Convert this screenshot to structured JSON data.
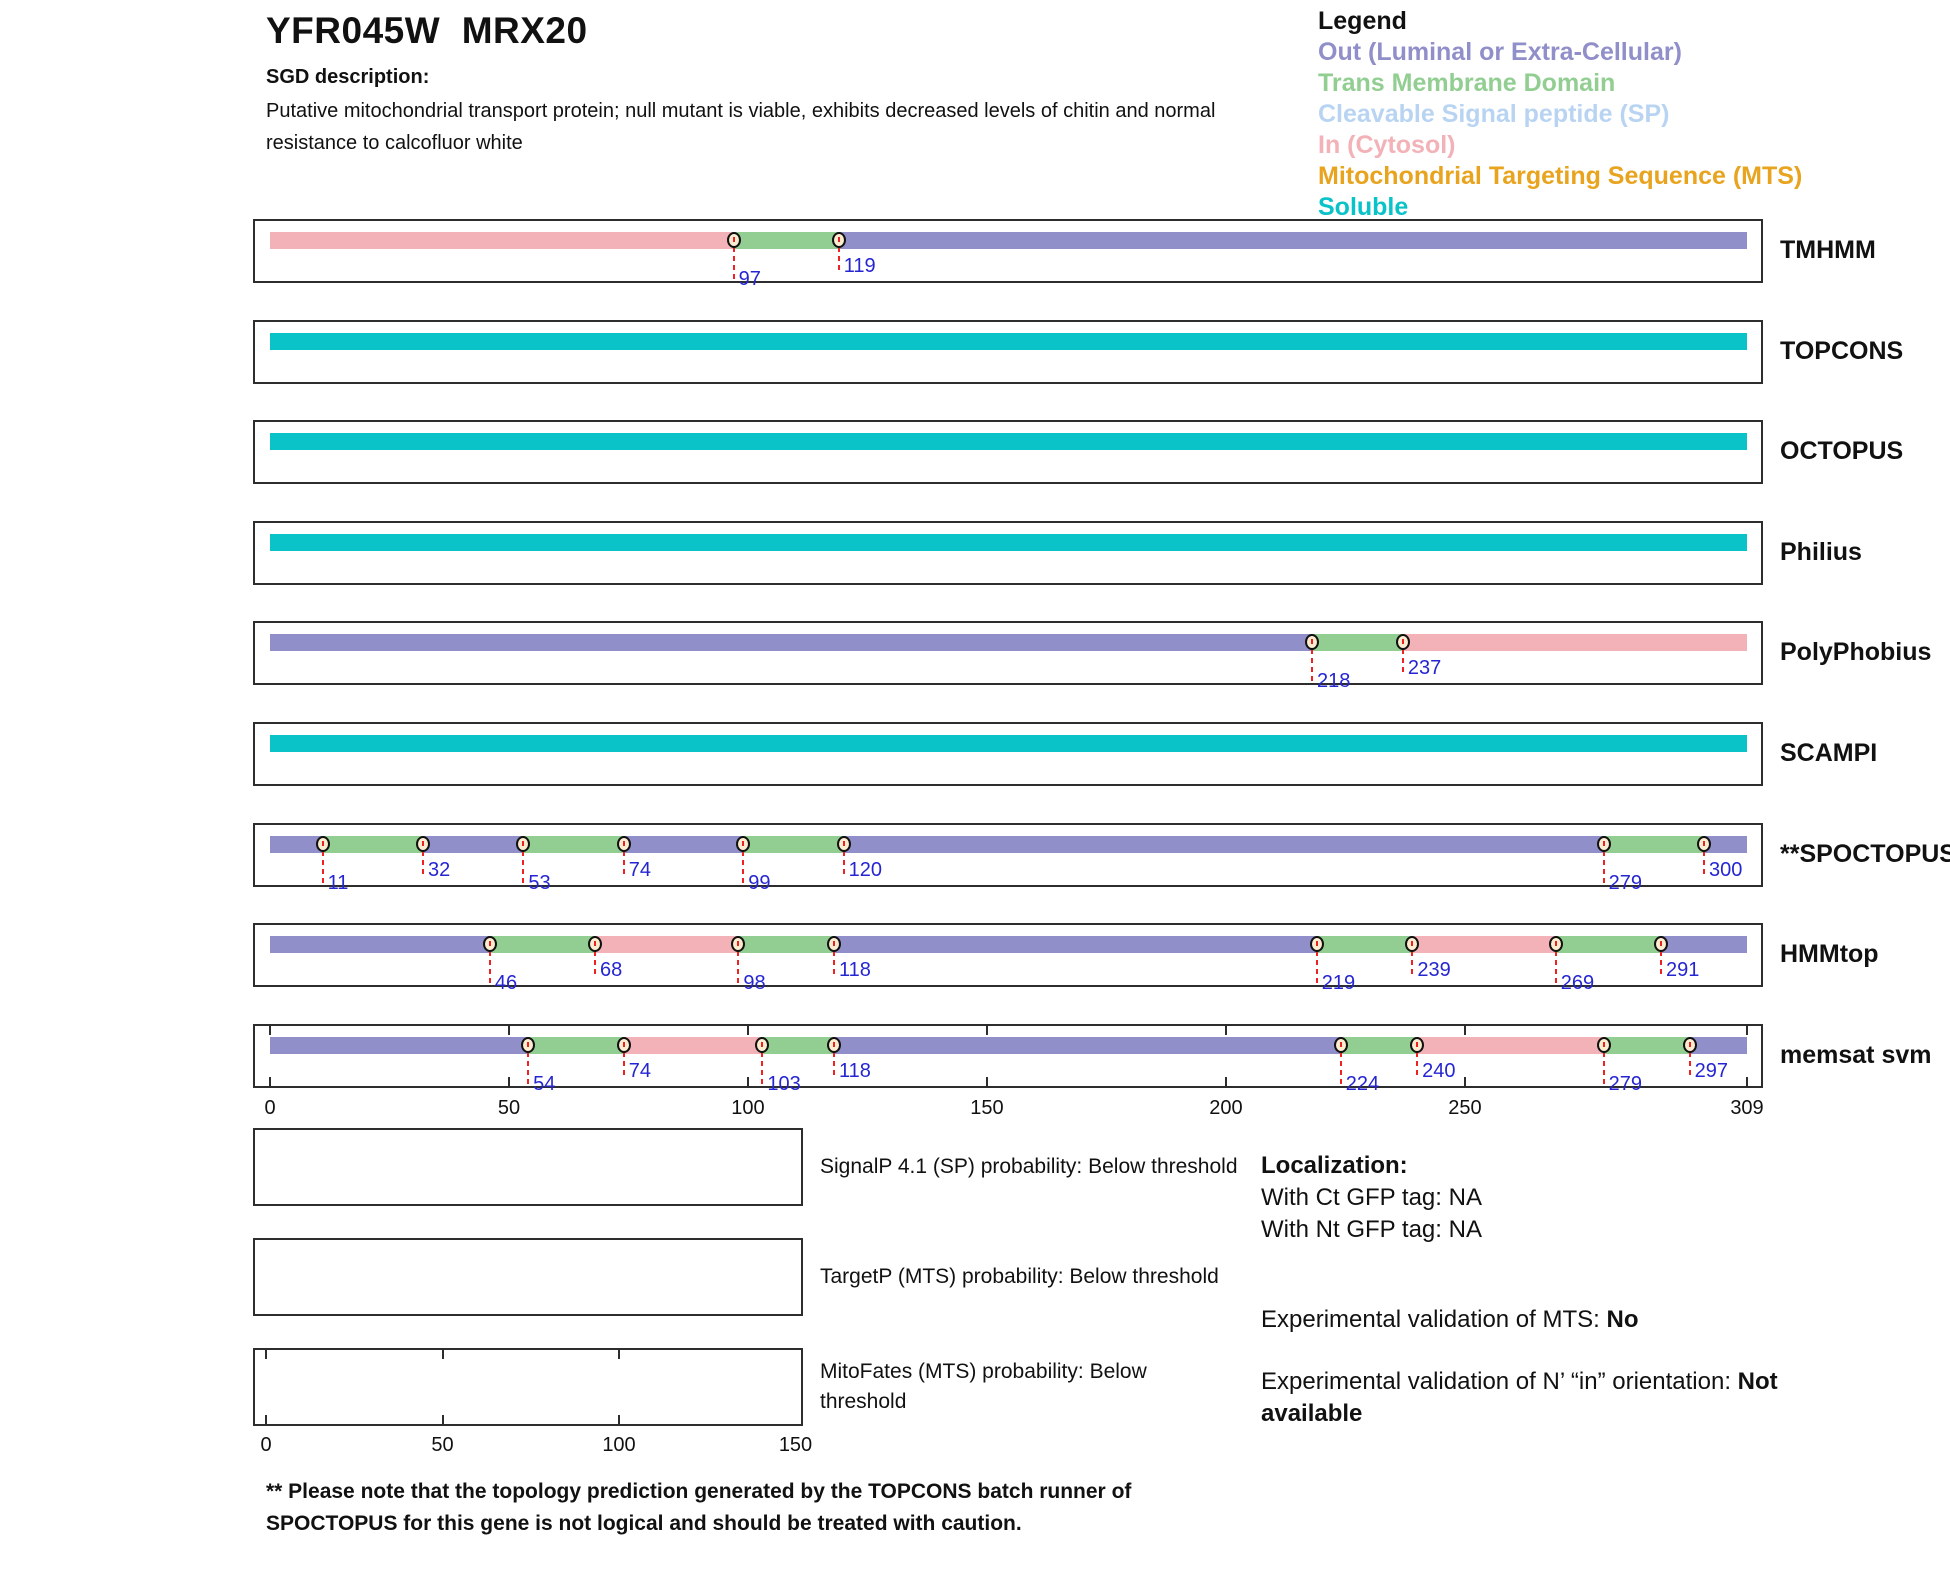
{
  "header": {
    "title": "YFR045W  MRX20",
    "sgd_heading": "SGD description:",
    "description_lines": [
      "Putative mitochondrial transport protein; null mutant is viable, exhibits decreased levels of chitin and normal",
      "resistance to calcofluor white"
    ]
  },
  "legend": {
    "title": "Legend",
    "items": [
      {
        "label": "Out (Luminal or Extra-Cellular)",
        "region": "out"
      },
      {
        "label": "Trans Membrane Domain",
        "region": "tm"
      },
      {
        "label": "Cleavable Signal peptide (SP)",
        "region": "sp"
      },
      {
        "label": "In (Cytosol)",
        "region": "in"
      },
      {
        "label": "Mitochondrial Targeting Sequence (MTS)",
        "region": "mts"
      },
      {
        "label": "Soluble",
        "region": "soluble"
      }
    ]
  },
  "colors": {
    "out": "#918fc9",
    "tm": "#92ce92",
    "sp": "#b9d4f2",
    "in": "#f2b2b7",
    "mts": "#e9a41f",
    "soluble": "#0ac3c9",
    "marker_fill": "#fcecd0",
    "marker_border": "#111111",
    "dash_red": "#ee2222",
    "number_blue": "#2525d2",
    "box_border": "#2d2d2d"
  },
  "chart_data": {
    "type": "topology-tracks",
    "x_axis": {
      "min": 0,
      "max": 309,
      "ticks": [
        0,
        50,
        100,
        150,
        200,
        250,
        309
      ]
    },
    "tracks": [
      {
        "label": "TMHMM",
        "segments": [
          {
            "from": 0,
            "to": 97,
            "region": "in"
          },
          {
            "from": 97,
            "to": 119,
            "region": "tm"
          },
          {
            "from": 119,
            "to": 309,
            "region": "out"
          }
        ],
        "markers": [
          97,
          119
        ]
      },
      {
        "label": "TOPCONS",
        "segments": [
          {
            "from": 0,
            "to": 309,
            "region": "soluble"
          }
        ],
        "markers": []
      },
      {
        "label": "OCTOPUS",
        "segments": [
          {
            "from": 0,
            "to": 309,
            "region": "soluble"
          }
        ],
        "markers": []
      },
      {
        "label": "Philius",
        "segments": [
          {
            "from": 0,
            "to": 309,
            "region": "soluble"
          }
        ],
        "markers": []
      },
      {
        "label": "PolyPhobius",
        "segments": [
          {
            "from": 0,
            "to": 218,
            "region": "out"
          },
          {
            "from": 218,
            "to": 237,
            "region": "tm"
          },
          {
            "from": 237,
            "to": 309,
            "region": "in"
          }
        ],
        "markers": [
          218,
          237
        ]
      },
      {
        "label": "SCAMPI",
        "segments": [
          {
            "from": 0,
            "to": 309,
            "region": "soluble"
          }
        ],
        "markers": []
      },
      {
        "label": "**SPOCTOPUS",
        "segments": [
          {
            "from": 0,
            "to": 11,
            "region": "out"
          },
          {
            "from": 11,
            "to": 32,
            "region": "tm"
          },
          {
            "from": 32,
            "to": 53,
            "region": "out"
          },
          {
            "from": 53,
            "to": 74,
            "region": "tm"
          },
          {
            "from": 74,
            "to": 99,
            "region": "out"
          },
          {
            "from": 99,
            "to": 120,
            "region": "tm"
          },
          {
            "from": 120,
            "to": 279,
            "region": "out"
          },
          {
            "from": 279,
            "to": 300,
            "region": "tm"
          },
          {
            "from": 300,
            "to": 309,
            "region": "out"
          }
        ],
        "markers": [
          11,
          32,
          53,
          74,
          99,
          120,
          279,
          300
        ]
      },
      {
        "label": "HMMtop",
        "segments": [
          {
            "from": 0,
            "to": 46,
            "region": "out"
          },
          {
            "from": 46,
            "to": 68,
            "region": "tm"
          },
          {
            "from": 68,
            "to": 98,
            "region": "in"
          },
          {
            "from": 98,
            "to": 118,
            "region": "tm"
          },
          {
            "from": 118,
            "to": 219,
            "region": "out"
          },
          {
            "from": 219,
            "to": 239,
            "region": "tm"
          },
          {
            "from": 239,
            "to": 269,
            "region": "in"
          },
          {
            "from": 269,
            "to": 291,
            "region": "tm"
          },
          {
            "from": 291,
            "to": 309,
            "region": "out"
          }
        ],
        "markers": [
          46,
          68,
          98,
          118,
          219,
          239,
          269,
          291
        ]
      },
      {
        "label": "memsat svm",
        "segments": [
          {
            "from": 0,
            "to": 54,
            "region": "out"
          },
          {
            "from": 54,
            "to": 74,
            "region": "tm"
          },
          {
            "from": 74,
            "to": 103,
            "region": "in"
          },
          {
            "from": 103,
            "to": 118,
            "region": "tm"
          },
          {
            "from": 118,
            "to": 224,
            "region": "out"
          },
          {
            "from": 224,
            "to": 240,
            "region": "tm"
          },
          {
            "from": 240,
            "to": 279,
            "region": "in"
          },
          {
            "from": 279,
            "to": 297,
            "region": "tm"
          },
          {
            "from": 297,
            "to": 309,
            "region": "out"
          }
        ],
        "markers": [
          54,
          74,
          103,
          118,
          224,
          240,
          279,
          297
        ],
        "has_axis_ticks": true
      }
    ]
  },
  "probability_plots": {
    "axis_ticks": [
      0,
      50,
      100,
      150
    ],
    "plots": [
      {
        "label_lines": [
          "SignalP 4.1 (SP) probability: Below threshold"
        ]
      },
      {
        "label_lines": [
          "TargetP (MTS) probability: Below threshold"
        ]
      },
      {
        "label_lines": [
          "MitoFates (MTS) probability: Below",
          "threshold"
        ]
      }
    ]
  },
  "localization": {
    "heading": "Localization:",
    "lines": [
      "With Ct GFP tag: NA",
      "With Nt GFP tag: NA"
    ],
    "mts_label": "Experimental validation of MTS: ",
    "mts_value": "No",
    "orientation_label": "Experimental validation of N’ “in” orientation: ",
    "orientation_value": "Not available"
  },
  "footnote_lines": [
    "** Please note that the topology prediction generated by the TOPCONS batch runner of",
    "SPOCTOPUS for this gene is not logical and should be treated with caution."
  ]
}
